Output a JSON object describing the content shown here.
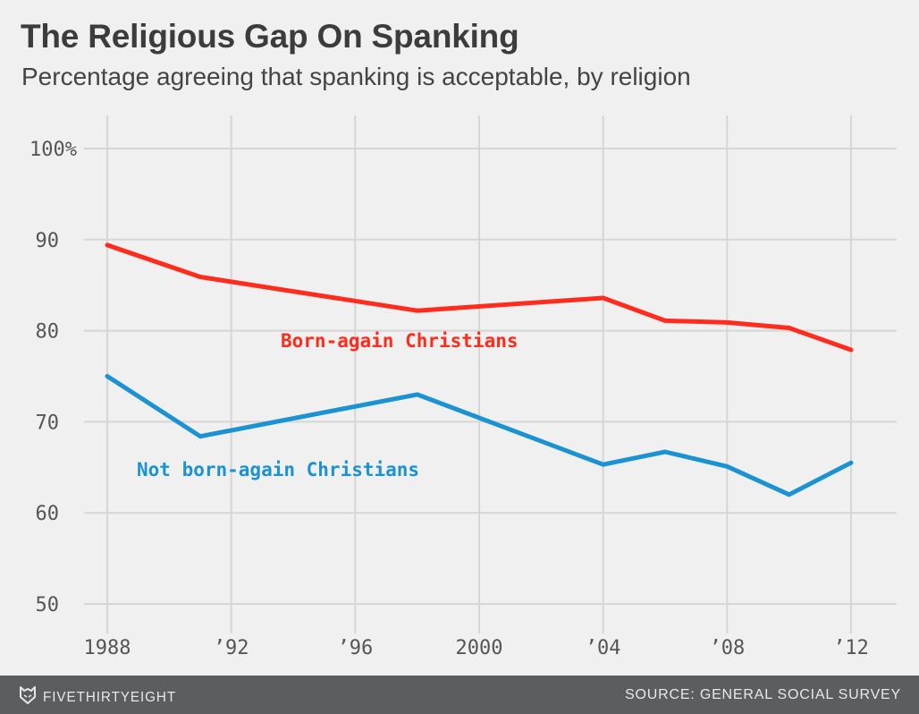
{
  "header": {
    "title": "The Religious Gap On Spanking",
    "subtitle": "Percentage agreeing that spanking is acceptable, by religion"
  },
  "footer": {
    "brand": "FIVETHIRTYEIGHT",
    "brand_icon": "fox-logo-icon",
    "source": "SOURCE: GENERAL SOCIAL SURVEY"
  },
  "chart_data": {
    "type": "line",
    "title": "The Religious Gap On Spanking",
    "subtitle": "Percentage agreeing that spanking is acceptable, by religion",
    "xlabel": "",
    "ylabel": "",
    "x": [
      1988,
      1991,
      1998,
      2004,
      2006,
      2008,
      2010,
      2012
    ],
    "xlim": [
      1988,
      2012
    ],
    "ylim": [
      50,
      100
    ],
    "grid": true,
    "x_ticks": [
      1988,
      1992,
      1996,
      2000,
      2004,
      2008,
      2012
    ],
    "x_tick_labels": [
      "1988",
      "’92",
      "’96",
      "2000",
      "’04",
      "’08",
      "’12"
    ],
    "y_ticks": [
      50,
      60,
      70,
      80,
      90,
      100
    ],
    "y_tick_labels": [
      "50",
      "60",
      "70",
      "80",
      "90",
      "100%"
    ],
    "series": [
      {
        "name": "Born-again Christians",
        "color": "#ff2b1c",
        "values": [
          89.4,
          85.9,
          82.2,
          83.6,
          81.1,
          80.9,
          80.3,
          77.9
        ]
      },
      {
        "name": "Not born-again Christians",
        "color": "#1b93d3",
        "values": [
          75.0,
          68.4,
          73.0,
          65.3,
          66.7,
          65.1,
          62.0,
          65.5
        ]
      }
    ]
  }
}
